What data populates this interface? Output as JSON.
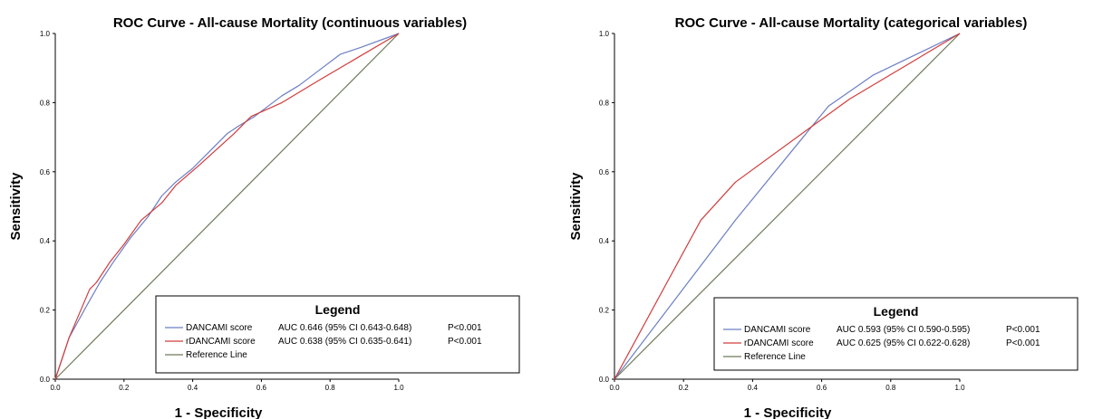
{
  "chart_data": [
    {
      "type": "line",
      "title": "ROC Curve - All-cause Mortality (continuous variables)",
      "xlabel": "1 - Specificity",
      "ylabel": "Sensitivity",
      "xlim": [
        0,
        1
      ],
      "ylim": [
        0,
        1
      ],
      "x_ticks": [
        "0.0",
        "0.2",
        "0.4",
        "0.6",
        "0.8",
        "1.0"
      ],
      "y_ticks": [
        "0.0",
        "0.2",
        "0.4",
        "0.6",
        "0.8",
        "1.0"
      ],
      "legend": {
        "title": "Legend",
        "placement": "bottom-right",
        "entries": [
          {
            "name": "DANCAMI score",
            "auc": "AUC 0.646 (95% CI 0.643-0.648)",
            "p": "P<0.001"
          },
          {
            "name": "rDANCAMI score",
            "auc": "AUC 0.638 (95% CI 0.635-0.641)",
            "p": "P<0.001"
          },
          {
            "name": "Reference Line",
            "auc": "",
            "p": ""
          }
        ]
      },
      "series": [
        {
          "name": "DANCAMI score",
          "color": "#6b7fc4",
          "x": [
            0,
            0.04,
            0.09,
            0.13,
            0.17,
            0.22,
            0.27,
            0.31,
            0.35,
            0.4,
            0.45,
            0.5,
            0.53,
            0.58,
            0.62,
            0.66,
            0.71,
            0.75,
            0.83,
            0.89,
            1.0
          ],
          "y": [
            0,
            0.12,
            0.21,
            0.28,
            0.34,
            0.41,
            0.47,
            0.53,
            0.57,
            0.61,
            0.66,
            0.71,
            0.73,
            0.76,
            0.79,
            0.82,
            0.85,
            0.88,
            0.94,
            0.96,
            1.0
          ]
        },
        {
          "name": "rDANCAMI score",
          "color": "#d23c3c",
          "x": [
            0,
            0.04,
            0.1,
            0.12,
            0.16,
            0.2,
            0.25,
            0.31,
            0.35,
            0.42,
            0.52,
            0.57,
            0.66,
            0.76,
            0.88,
            1.0
          ],
          "y": [
            0,
            0.12,
            0.26,
            0.28,
            0.34,
            0.39,
            0.46,
            0.51,
            0.56,
            0.62,
            0.71,
            0.76,
            0.8,
            0.86,
            0.93,
            1.0
          ]
        },
        {
          "name": "Reference Line",
          "color": "#6e7a5a",
          "x": [
            0,
            1.0
          ],
          "y": [
            0,
            1.0
          ]
        }
      ]
    },
    {
      "type": "line",
      "title": "ROC Curve - All-cause Mortality (categorical variables)",
      "xlabel": "1 - Specificity",
      "ylabel": "Sensitivity",
      "xlim": [
        0,
        1
      ],
      "ylim": [
        0,
        1
      ],
      "x_ticks": [
        "0.0",
        "0.2",
        "0.4",
        "0.6",
        "0.8",
        "1.0"
      ],
      "y_ticks": [
        "0.0",
        "0.2",
        "0.4",
        "0.6",
        "0.8",
        "1.0"
      ],
      "legend": {
        "title": "Legend",
        "placement": "bottom-right",
        "entries": [
          {
            "name": "DANCAMI score",
            "auc": "AUC 0.593 (95% CI 0.590-0.595)",
            "p": "P<0.001"
          },
          {
            "name": "rDANCAMI score",
            "auc": "AUC 0.625 (95% CI 0.622-0.628)",
            "p": "P<0.001"
          },
          {
            "name": "Reference Line",
            "auc": "",
            "p": ""
          }
        ]
      },
      "series": [
        {
          "name": "DANCAMI score",
          "color": "#6b7fc4",
          "x": [
            0,
            0.35,
            0.62,
            0.75,
            1.0
          ],
          "y": [
            0,
            0.46,
            0.79,
            0.88,
            1.0
          ]
        },
        {
          "name": "rDANCAMI score",
          "color": "#d23c3c",
          "x": [
            0,
            0.25,
            0.35,
            0.57,
            0.68,
            1.0
          ],
          "y": [
            0,
            0.46,
            0.57,
            0.73,
            0.81,
            1.0
          ]
        },
        {
          "name": "Reference Line",
          "color": "#6e7a5a",
          "x": [
            0,
            1.0
          ],
          "y": [
            0,
            1.0
          ]
        }
      ]
    }
  ]
}
